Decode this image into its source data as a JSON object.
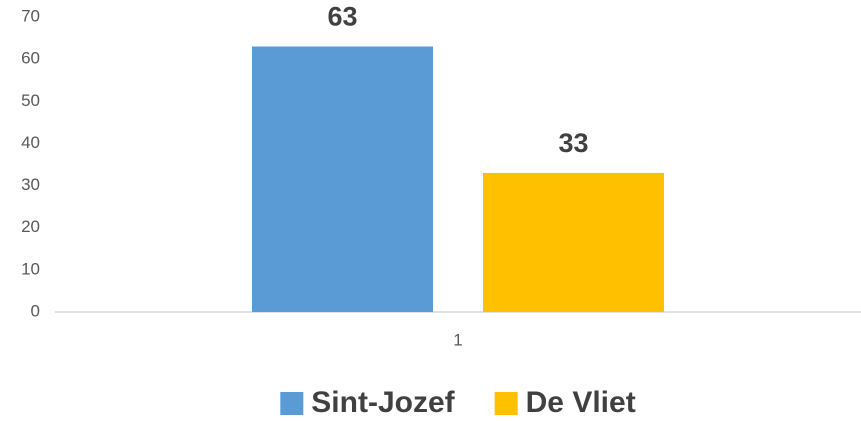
{
  "chart_data": {
    "type": "bar",
    "categories": [
      "1"
    ],
    "series": [
      {
        "name": "Sint-Jozef",
        "color": "#5b9bd5",
        "values": [
          63
        ]
      },
      {
        "name": "De Vliet",
        "color": "#ffc000",
        "values": [
          33
        ]
      }
    ],
    "ylim": [
      0,
      70
    ],
    "yticks": [
      0,
      10,
      20,
      30,
      40,
      50,
      60,
      70
    ],
    "grid": false,
    "data_labels": true,
    "legend": "bottom"
  }
}
